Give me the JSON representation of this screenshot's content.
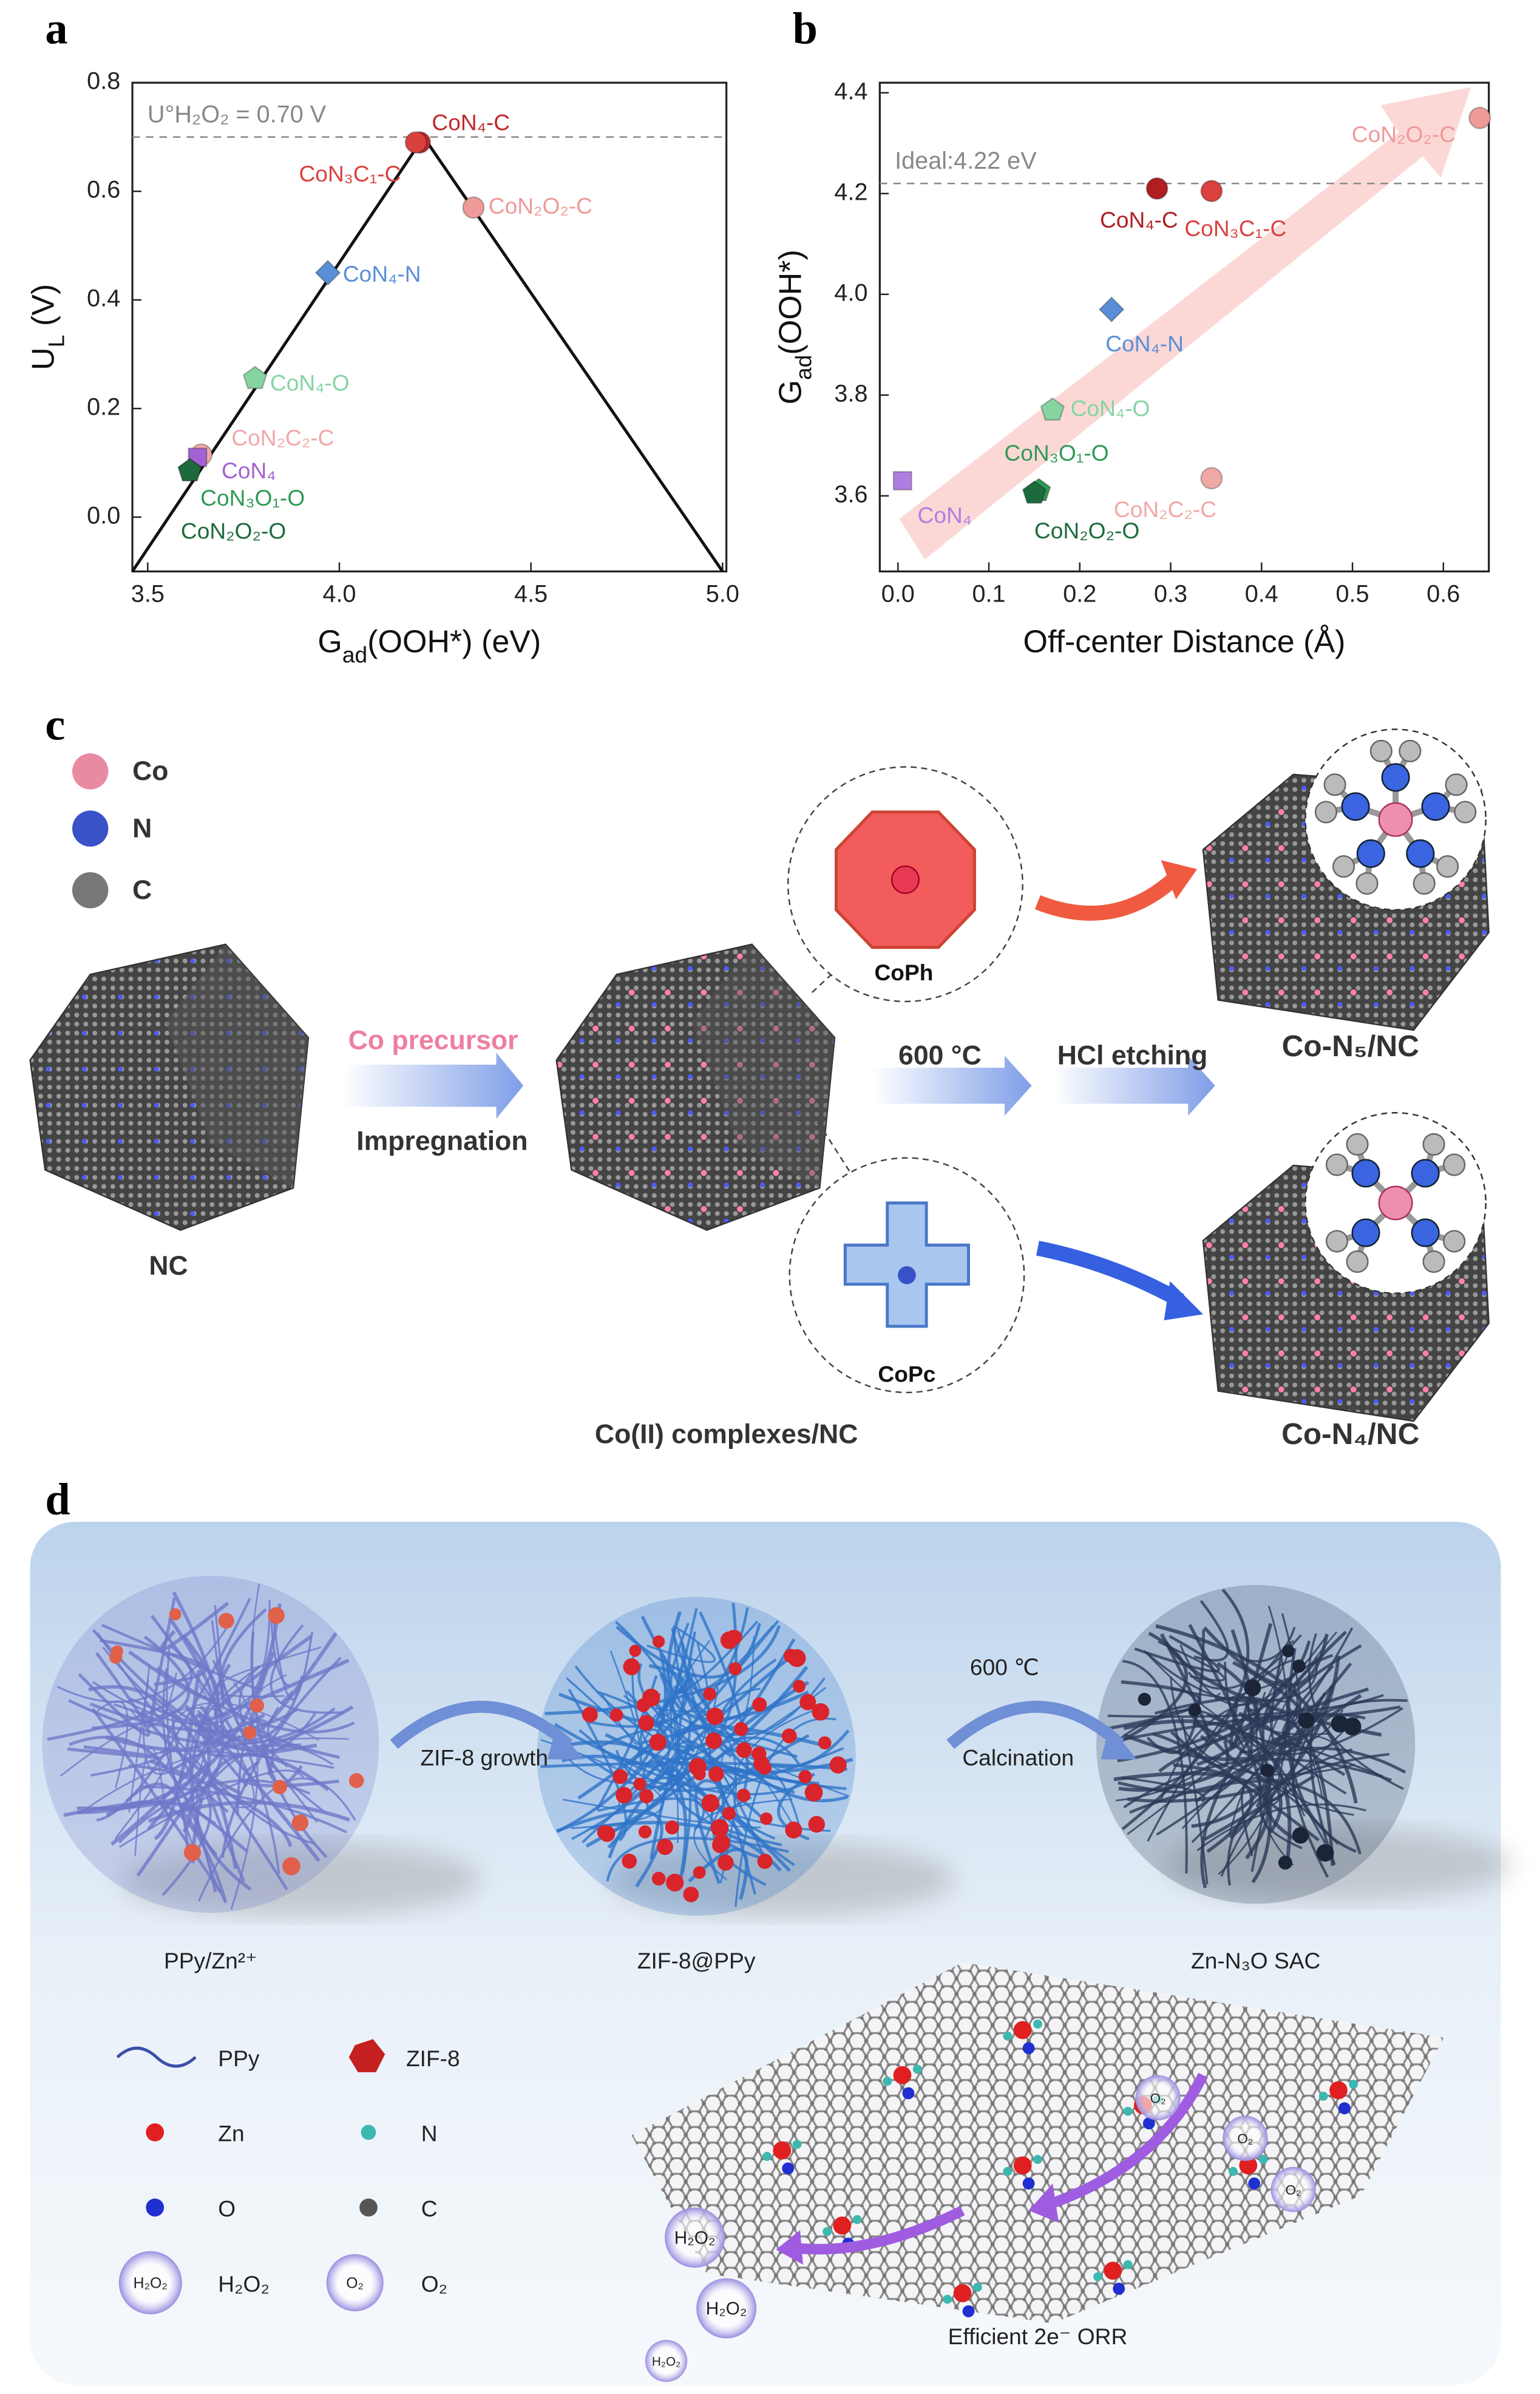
{
  "chart_data": [
    {
      "type": "scatter",
      "panel": "a",
      "xlabel": [
        "G",
        "ad",
        "(OOH*) (eV)"
      ],
      "ylabel": [
        "U",
        "L",
        " (V)"
      ],
      "xlim": [
        3.46,
        5.01
      ],
      "ylim": [
        -0.1,
        0.8
      ],
      "xticks": [
        3.5,
        {
          "value": 4,
          "label": "4.0"
        },
        4.5,
        {
          "value": 5,
          "label": "5.0"
        }
      ],
      "yticks": [
        {
          "value": 0,
          "label": "0.0"
        },
        0.2,
        0.4,
        0.6,
        0.8
      ],
      "reference": {
        "value": 0.7,
        "label": "U°H₂O₂ = 0.70 V"
      },
      "volcano": {
        "x": [
          3.46,
          4.22,
          5.0
        ],
        "y": [
          -0.1,
          0.7,
          -0.1
        ]
      },
      "series": [
        {
          "name": "CoN₄-C",
          "color": "#c0282b",
          "marker": "circle",
          "x": [
            4.21
          ],
          "values": [
            0.69
          ]
        },
        {
          "name": "CoN₃C₁-C",
          "color": "#d9413f",
          "marker": "circle",
          "x": [
            4.2
          ],
          "values": [
            0.69
          ]
        },
        {
          "name": "CoN₂O₂-C",
          "color": "#ee9a98",
          "marker": "circle",
          "x": [
            4.35
          ],
          "values": [
            0.57
          ]
        },
        {
          "name": "CoN₄-N",
          "color": "#5a8fd8",
          "marker": "diamond",
          "x": [
            3.97
          ],
          "values": [
            0.45
          ]
        },
        {
          "name": "CoN₄-O",
          "color": "#86d4a2",
          "marker": "pentagon",
          "x": [
            3.78
          ],
          "values": [
            0.255
          ]
        },
        {
          "name": "CoN₂C₂-C",
          "color": "#f0a8a6",
          "marker": "circle",
          "x": [
            3.64
          ],
          "values": [
            0.115
          ]
        },
        {
          "name": "CoN₄",
          "color": "#a262d4",
          "marker": "square",
          "x": [
            3.63
          ],
          "values": [
            0.11
          ]
        },
        {
          "name": "CoN₃O₁-O",
          "color": "#2f9a55",
          "marker": "pentagon",
          "x": [
            3.61
          ],
          "values": [
            0.085
          ]
        },
        {
          "name": "CoN₂O₂-O",
          "color": "#1d6b3c",
          "marker": "pentagon",
          "x": [
            3.61
          ],
          "values": [
            0.085
          ]
        }
      ]
    },
    {
      "type": "scatter",
      "panel": "b",
      "xlabel": [
        "Off-center Distance (Å)"
      ],
      "ylabel": [
        "G",
        "ad",
        "(OOH*)"
      ],
      "xlim": [
        -0.02,
        0.65
      ],
      "ylim": [
        3.45,
        4.42
      ],
      "xticks": [
        {
          "value": 0,
          "label": "0.0"
        },
        0.1,
        0.2,
        0.3,
        0.4,
        0.5,
        0.6
      ],
      "yticks": [
        3.6,
        3.8,
        {
          "value": 4,
          "label": "4.0"
        },
        4.2,
        4.4
      ],
      "reference": {
        "value": 4.22,
        "label": "Ideal:4.22 eV"
      },
      "series": [
        {
          "name": "CoN₂O₂-C",
          "color": "#ee9a98",
          "marker": "circle",
          "x": [
            0.64
          ],
          "values": [
            4.35
          ]
        },
        {
          "name": "CoN₄-C",
          "color": "#b01e22",
          "marker": "circle",
          "x": [
            0.285
          ],
          "values": [
            4.21
          ]
        },
        {
          "name": "CoN₃C₁-C",
          "color": "#d9413f",
          "marker": "circle",
          "x": [
            0.345
          ],
          "values": [
            4.205
          ]
        },
        {
          "name": "CoN₄-N",
          "color": "#5a8fd8",
          "marker": "diamond",
          "x": [
            0.235
          ],
          "values": [
            3.97
          ]
        },
        {
          "name": "CoN₄-O",
          "color": "#86d4a2",
          "marker": "pentagon",
          "x": [
            0.17
          ],
          "values": [
            3.77
          ]
        },
        {
          "name": "CoN₃O₁-O",
          "color": "#2f9a55",
          "marker": "pentagon",
          "x": [
            0.155
          ],
          "values": [
            3.61
          ]
        },
        {
          "name": "CoN₂O₂-O",
          "color": "#1d6b3c",
          "marker": "pentagon",
          "x": [
            0.15
          ],
          "values": [
            3.605
          ]
        },
        {
          "name": "CoN₄",
          "color": "#b07ee0",
          "marker": "square",
          "x": [
            0.005
          ],
          "values": [
            3.63
          ]
        },
        {
          "name": "CoN₂C₂-C",
          "color": "#f0a8a6",
          "marker": "circle",
          "x": [
            0.345
          ],
          "values": [
            3.635
          ]
        }
      ]
    }
  ],
  "diagram_c": {
    "panel": "c",
    "legend": [
      "Co",
      "N",
      "C"
    ],
    "nc_label": "NC",
    "precursor": "Co precursor",
    "impregnation": "Impregnation",
    "complexes_label": "Co(II) complexes/NC",
    "coph": "CoPh",
    "copc": "CoPc",
    "temperature": "600 °C",
    "etching": "HCl etching",
    "product_n5": "Co-N₅/NC",
    "product_n4": "Co-N₄/NC"
  },
  "diagram_d": {
    "panel": "d",
    "stages": [
      "PPy/Zn²⁺",
      "ZIF-8@PPy",
      "Zn-N₃O SAC"
    ],
    "step1": "ZIF-8 growth",
    "temperature": "600 ℃",
    "step2": "Calcination",
    "legend": [
      "PPy",
      "ZIF-8",
      "Zn",
      "N",
      "O",
      "C",
      "H₂O₂",
      "O₂"
    ],
    "legend_bubbles": [
      "H₂O₂",
      "O₂"
    ],
    "bubbles": [
      "O₂",
      "O₂",
      "O₂",
      "H₂O₂",
      "H₂O₂",
      "H₂O₂"
    ],
    "caption": "Efficient 2e⁻ ORR"
  }
}
